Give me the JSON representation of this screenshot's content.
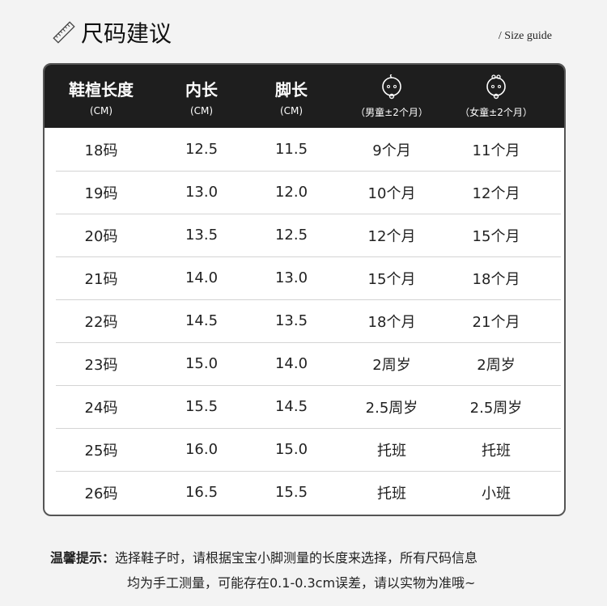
{
  "header": {
    "title": "尺码建议",
    "subtitle": "/ Size guide",
    "icon": "ruler-icon"
  },
  "table": {
    "columns": [
      {
        "label": "鞋楦长度",
        "sub": "(CM)"
      },
      {
        "label": "内长",
        "sub": "(CM)"
      },
      {
        "label": "脚长",
        "sub": "(CM)"
      },
      {
        "label": "",
        "sub": "（男童±2个月）",
        "icon": "baby-boy-icon"
      },
      {
        "label": "",
        "sub": "（女童±2个月）",
        "icon": "baby-girl-icon"
      }
    ],
    "rows": [
      [
        "18码",
        "12.5",
        "11.5",
        "9个月",
        "11个月"
      ],
      [
        "19码",
        "13.0",
        "12.0",
        "10个月",
        "12个月"
      ],
      [
        "20码",
        "13.5",
        "12.5",
        "12个月",
        "15个月"
      ],
      [
        "21码",
        "14.0",
        "13.0",
        "15个月",
        "18个月"
      ],
      [
        "22码",
        "14.5",
        "13.5",
        "18个月",
        "21个月"
      ],
      [
        "23码",
        "15.0",
        "14.0",
        "2周岁",
        "2周岁"
      ],
      [
        "24码",
        "15.5",
        "14.5",
        "2.5周岁",
        "2.5周岁"
      ],
      [
        "25码",
        "16.0",
        "15.0",
        "托班",
        "托班"
      ],
      [
        "26码",
        "16.5",
        "15.5",
        "托班",
        "小班"
      ]
    ]
  },
  "tip": {
    "label": "温馨提示：",
    "line1": "选择鞋子时，请根据宝宝小脚测量的长度来选择，所有尺码信息",
    "line2": "均为手工测量，可能存在0.1-0.3cm误差，请以实物为准哦~"
  },
  "colors": {
    "header_bg": "#1e1e1e",
    "page_bg": "#f3f3f3"
  }
}
